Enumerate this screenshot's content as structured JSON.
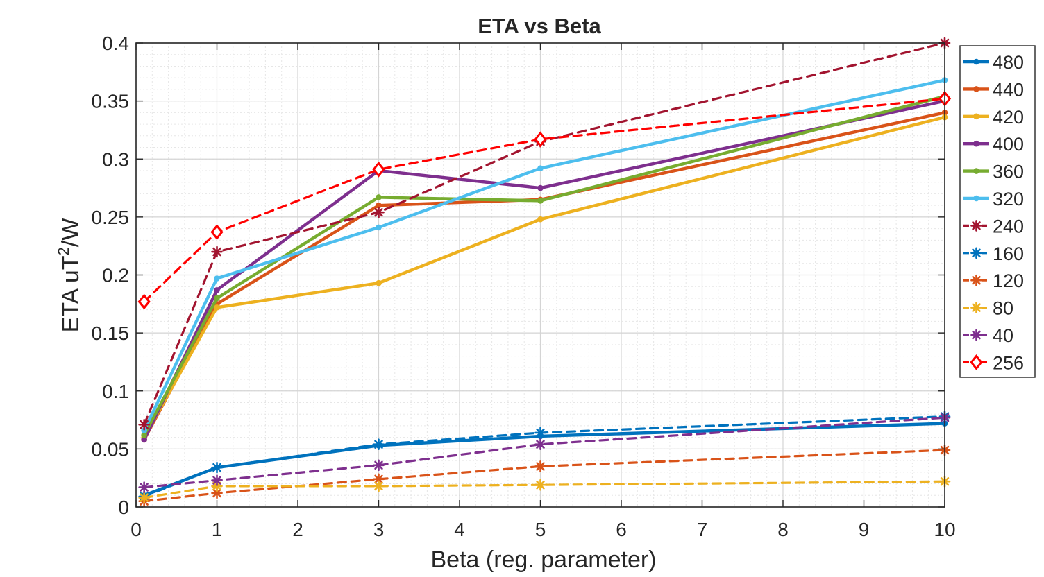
{
  "chart_data": {
    "type": "line",
    "title": "ETA vs Beta",
    "xlabel": "Beta (reg. parameter)",
    "ylabel": {
      "main": "ETA uT",
      "superscript": "2",
      "tail": "/W"
    },
    "xlim": [
      0,
      10
    ],
    "ylim": [
      0,
      0.4
    ],
    "xticks": [
      0,
      1,
      2,
      3,
      4,
      5,
      6,
      7,
      8,
      9,
      10
    ],
    "yticks": [
      0,
      0.05,
      0.1,
      0.15,
      0.2,
      0.25,
      0.3,
      0.35,
      0.4
    ],
    "xtick_labels": [
      "0",
      "1",
      "2",
      "3",
      "4",
      "5",
      "6",
      "7",
      "8",
      "9",
      "10"
    ],
    "ytick_labels": [
      "0",
      "0.05",
      "0.1",
      "0.15",
      "0.2",
      "0.25",
      "0.3",
      "0.35",
      "0.4"
    ],
    "grid": true,
    "minor_grid": true,
    "legend_position": "right",
    "series": [
      {
        "name": "480",
        "color": "#0072BD",
        "style": "solid",
        "marker": "dot",
        "x": [
          0.1,
          1,
          3,
          5,
          10
        ],
        "y": [
          0.01,
          0.034,
          0.053,
          0.061,
          0.072
        ]
      },
      {
        "name": "440",
        "color": "#D95319",
        "style": "solid",
        "marker": "dot",
        "x": [
          0.1,
          1,
          3,
          5,
          10
        ],
        "y": [
          0.058,
          0.175,
          0.26,
          0.265,
          0.34
        ]
      },
      {
        "name": "420",
        "color": "#EDB120",
        "style": "solid",
        "marker": "dot",
        "x": [
          0.1,
          1,
          3,
          5,
          10
        ],
        "y": [
          0.06,
          0.172,
          0.193,
          0.248,
          0.336
        ]
      },
      {
        "name": "400",
        "color": "#7E2F8E",
        "style": "solid",
        "marker": "dot",
        "x": [
          0.1,
          1,
          3,
          5,
          10
        ],
        "y": [
          0.058,
          0.187,
          0.29,
          0.275,
          0.35
        ]
      },
      {
        "name": "360",
        "color": "#77AC30",
        "style": "solid",
        "marker": "dot",
        "x": [
          0.1,
          1,
          3,
          5,
          10
        ],
        "y": [
          0.062,
          0.18,
          0.267,
          0.264,
          0.354
        ]
      },
      {
        "name": "320",
        "color": "#4DBEEE",
        "style": "solid",
        "marker": "dot",
        "x": [
          0.1,
          1,
          3,
          5,
          10
        ],
        "y": [
          0.066,
          0.197,
          0.241,
          0.292,
          0.368
        ]
      },
      {
        "name": "240",
        "color": "#A2142F",
        "style": "dashed",
        "marker": "star",
        "x": [
          0.1,
          1,
          3,
          5,
          10
        ],
        "y": [
          0.071,
          0.22,
          0.254,
          0.315,
          0.4
        ]
      },
      {
        "name": "160",
        "color": "#0072BD",
        "style": "dashed",
        "marker": "star",
        "x": [
          0.1,
          1,
          3,
          5,
          10
        ],
        "y": [
          0.009,
          0.034,
          0.054,
          0.064,
          0.078
        ]
      },
      {
        "name": "120",
        "color": "#D95319",
        "style": "dashed",
        "marker": "star",
        "x": [
          0.1,
          1,
          3,
          5,
          10
        ],
        "y": [
          0.005,
          0.012,
          0.024,
          0.035,
          0.049
        ]
      },
      {
        "name": "80",
        "color": "#EDB120",
        "style": "dashed",
        "marker": "star",
        "x": [
          0.1,
          1,
          3,
          5,
          10
        ],
        "y": [
          0.008,
          0.018,
          0.018,
          0.019,
          0.022
        ]
      },
      {
        "name": "40",
        "color": "#7E2F8E",
        "style": "dashed",
        "marker": "star",
        "x": [
          0.1,
          1,
          3,
          5,
          10
        ],
        "y": [
          0.017,
          0.023,
          0.036,
          0.054,
          0.077
        ]
      },
      {
        "name": "256",
        "color": "#FF0000",
        "style": "dashed",
        "marker": "diamond",
        "x": [
          0.1,
          1,
          3,
          5,
          10
        ],
        "y": [
          0.177,
          0.237,
          0.291,
          0.317,
          0.352
        ]
      }
    ]
  }
}
